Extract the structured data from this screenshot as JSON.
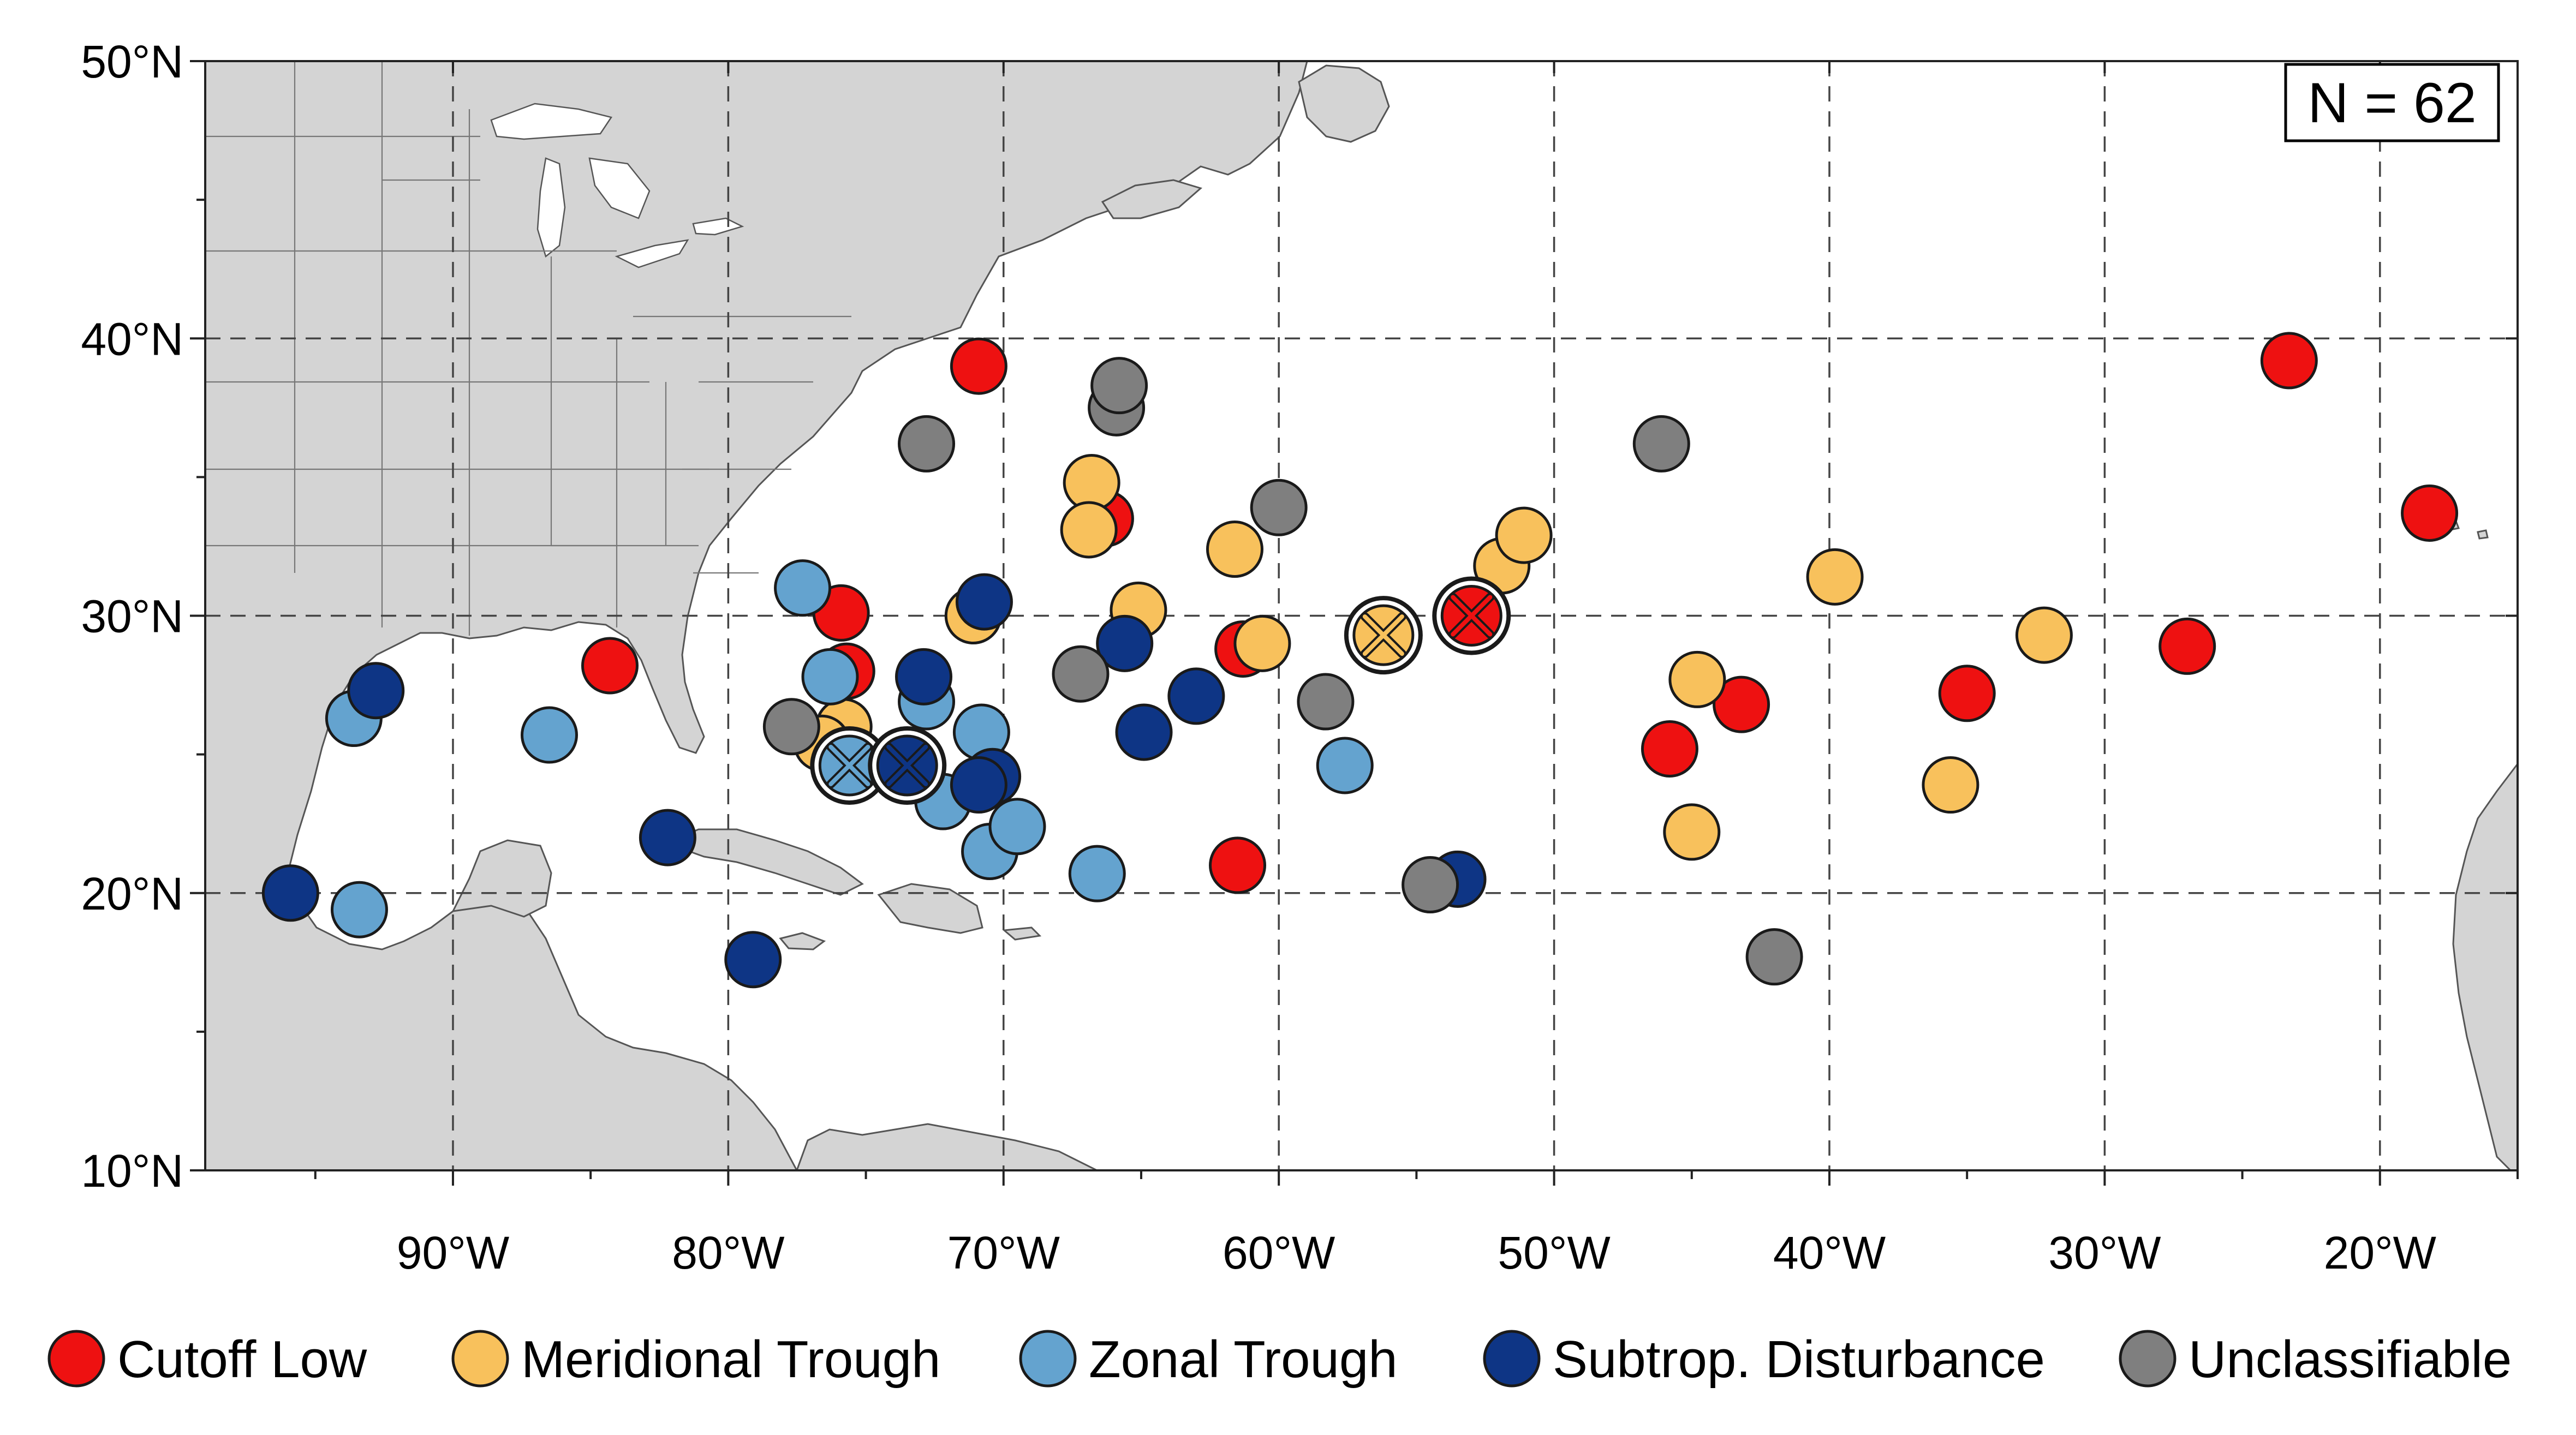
{
  "map": {
    "lon_range": [
      -99,
      -15
    ],
    "lat_range": [
      10,
      50
    ],
    "x_ticks": [
      {
        "lon": -90,
        "label": "90°W"
      },
      {
        "lon": -80,
        "label": "80°W"
      },
      {
        "lon": -70,
        "label": "70°W"
      },
      {
        "lon": -60,
        "label": "60°W"
      },
      {
        "lon": -50,
        "label": "50°W"
      },
      {
        "lon": -40,
        "label": "40°W"
      },
      {
        "lon": -30,
        "label": "30°W"
      },
      {
        "lon": -20,
        "label": "20°W"
      }
    ],
    "y_ticks": [
      {
        "lat": 50,
        "label": "50°N"
      },
      {
        "lat": 40,
        "label": "40°N"
      },
      {
        "lat": 30,
        "label": "30°N"
      },
      {
        "lat": 20,
        "label": "20°N"
      },
      {
        "lat": 10,
        "label": "10°N"
      }
    ],
    "grid": "dashed",
    "count_label": "N = 62"
  },
  "categories": [
    {
      "key": "cutoff",
      "label": "Cutoff Low",
      "color": "#ee1111"
    },
    {
      "key": "meridional",
      "label": "Meridional Trough",
      "color": "#f8c15c"
    },
    {
      "key": "zonal",
      "label": "Zonal Trough",
      "color": "#64a3cf"
    },
    {
      "key": "subtrop",
      "label": "Subtrop. Disturbance",
      "color": "#0e3585"
    },
    {
      "key": "unclass",
      "label": "Unclassifiable",
      "color": "#7f7f7f"
    }
  ],
  "points": [
    {
      "cat": "cutoff",
      "lon": -70.9,
      "lat": 39.0
    },
    {
      "cat": "cutoff",
      "lon": -66.3,
      "lat": 33.5
    },
    {
      "cat": "cutoff",
      "lon": -75.9,
      "lat": 30.1
    },
    {
      "cat": "cutoff",
      "lon": -75.7,
      "lat": 28.0
    },
    {
      "cat": "cutoff",
      "lon": -84.3,
      "lat": 28.2
    },
    {
      "cat": "cutoff",
      "lon": -61.3,
      "lat": 28.8
    },
    {
      "cat": "cutoff",
      "lon": -61.5,
      "lat": 21.0
    },
    {
      "cat": "cutoff",
      "lon": -45.8,
      "lat": 25.2
    },
    {
      "cat": "cutoff",
      "lon": -43.2,
      "lat": 26.8
    },
    {
      "cat": "cutoff",
      "lon": -35.0,
      "lat": 27.2
    },
    {
      "cat": "cutoff",
      "lon": -27.0,
      "lat": 28.9
    },
    {
      "cat": "cutoff",
      "lon": -23.3,
      "lat": 39.2
    },
    {
      "cat": "cutoff",
      "lon": -18.2,
      "lat": 33.7
    },
    {
      "cat": "meridional",
      "lon": -66.8,
      "lat": 34.8
    },
    {
      "cat": "meridional",
      "lon": -66.9,
      "lat": 33.1
    },
    {
      "cat": "meridional",
      "lon": -71.1,
      "lat": 30.0
    },
    {
      "cat": "meridional",
      "lon": -65.1,
      "lat": 30.2
    },
    {
      "cat": "meridional",
      "lon": -61.6,
      "lat": 32.4
    },
    {
      "cat": "meridional",
      "lon": -60.6,
      "lat": 29.0
    },
    {
      "cat": "meridional",
      "lon": -75.8,
      "lat": 26.0
    },
    {
      "cat": "meridional",
      "lon": -76.6,
      "lat": 25.4
    },
    {
      "cat": "meridional",
      "lon": -51.9,
      "lat": 31.8
    },
    {
      "cat": "meridional",
      "lon": -51.1,
      "lat": 32.9
    },
    {
      "cat": "meridional",
      "lon": -39.8,
      "lat": 31.4
    },
    {
      "cat": "meridional",
      "lon": -44.8,
      "lat": 27.7
    },
    {
      "cat": "meridional",
      "lon": -45.0,
      "lat": 22.2
    },
    {
      "cat": "meridional",
      "lon": -35.6,
      "lat": 23.9
    },
    {
      "cat": "meridional",
      "lon": -32.2,
      "lat": 29.3
    },
    {
      "cat": "zonal",
      "lon": -77.3,
      "lat": 31.0
    },
    {
      "cat": "zonal",
      "lon": -76.3,
      "lat": 27.8
    },
    {
      "cat": "zonal",
      "lon": -72.8,
      "lat": 26.9
    },
    {
      "cat": "zonal",
      "lon": -70.8,
      "lat": 25.8
    },
    {
      "cat": "zonal",
      "lon": -72.2,
      "lat": 23.3
    },
    {
      "cat": "zonal",
      "lon": -70.5,
      "lat": 21.5
    },
    {
      "cat": "zonal",
      "lon": -69.5,
      "lat": 22.4
    },
    {
      "cat": "zonal",
      "lon": -66.6,
      "lat": 20.7
    },
    {
      "cat": "zonal",
      "lon": -57.6,
      "lat": 24.6
    },
    {
      "cat": "zonal",
      "lon": -86.5,
      "lat": 25.7
    },
    {
      "cat": "zonal",
      "lon": -93.6,
      "lat": 26.3
    },
    {
      "cat": "zonal",
      "lon": -93.4,
      "lat": 19.4
    },
    {
      "cat": "subtrop",
      "lon": -70.7,
      "lat": 30.5
    },
    {
      "cat": "subtrop",
      "lon": -72.9,
      "lat": 27.8
    },
    {
      "cat": "subtrop",
      "lon": -70.4,
      "lat": 24.2
    },
    {
      "cat": "subtrop",
      "lon": -70.9,
      "lat": 23.9
    },
    {
      "cat": "subtrop",
      "lon": -65.6,
      "lat": 29.0
    },
    {
      "cat": "subtrop",
      "lon": -64.9,
      "lat": 25.8
    },
    {
      "cat": "subtrop",
      "lon": -63.0,
      "lat": 27.1
    },
    {
      "cat": "subtrop",
      "lon": -53.5,
      "lat": 20.5
    },
    {
      "cat": "subtrop",
      "lon": -82.2,
      "lat": 22.0
    },
    {
      "cat": "subtrop",
      "lon": -79.1,
      "lat": 17.6
    },
    {
      "cat": "subtrop",
      "lon": -92.8,
      "lat": 27.3
    },
    {
      "cat": "subtrop",
      "lon": -95.9,
      "lat": 20.0
    },
    {
      "cat": "unclass",
      "lon": -72.8,
      "lat": 36.2
    },
    {
      "cat": "unclass",
      "lon": -65.9,
      "lat": 37.5
    },
    {
      "cat": "unclass",
      "lon": -65.8,
      "lat": 38.3
    },
    {
      "cat": "unclass",
      "lon": -60.0,
      "lat": 33.9
    },
    {
      "cat": "unclass",
      "lon": -67.2,
      "lat": 27.9
    },
    {
      "cat": "unclass",
      "lon": -58.3,
      "lat": 26.9
    },
    {
      "cat": "unclass",
      "lon": -77.7,
      "lat": 26.0
    },
    {
      "cat": "unclass",
      "lon": -54.5,
      "lat": 20.3
    },
    {
      "cat": "unclass",
      "lon": -46.1,
      "lat": 36.2
    },
    {
      "cat": "unclass",
      "lon": -42.0,
      "lat": 17.7
    }
  ],
  "composite_markers": [
    {
      "cat": "zonal",
      "lon": -75.6,
      "lat": 24.6
    },
    {
      "cat": "subtrop",
      "lon": -73.5,
      "lat": 24.6
    },
    {
      "cat": "meridional",
      "lon": -56.2,
      "lat": 29.3
    },
    {
      "cat": "cutoff",
      "lon": -53.0,
      "lat": 30.0
    }
  ]
}
